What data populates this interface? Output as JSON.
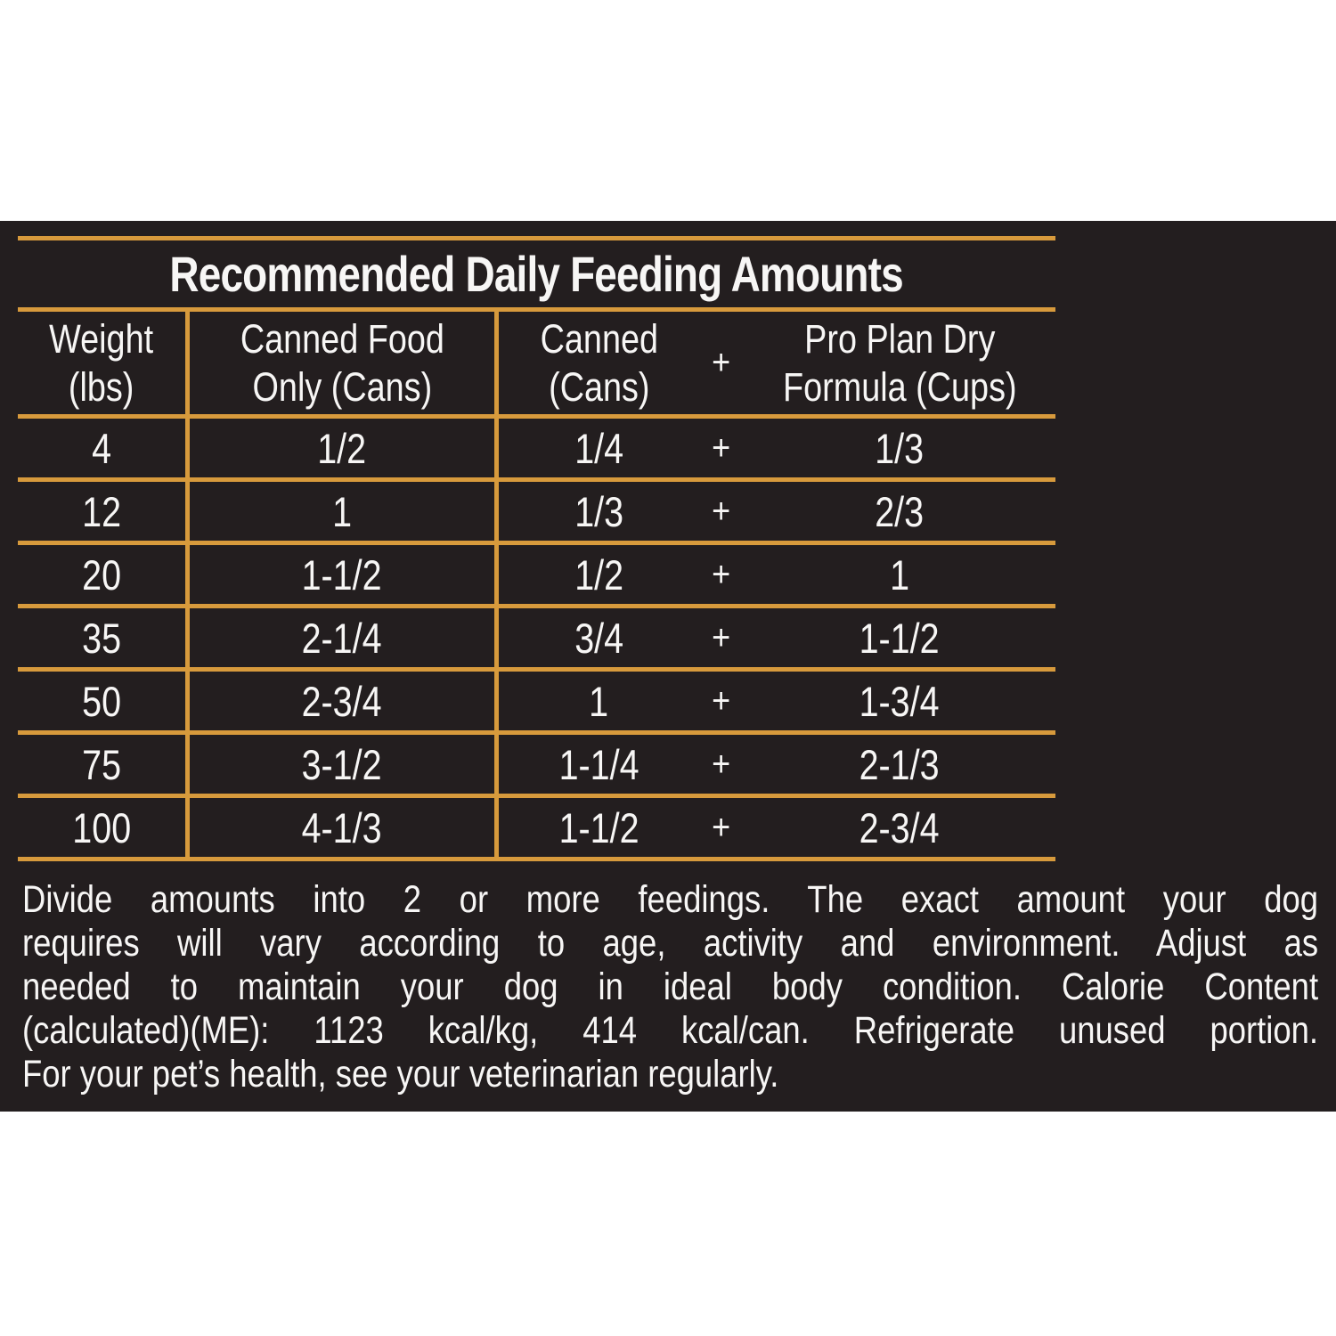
{
  "colors": {
    "page_background": "#ffffff",
    "panel_background": "#231e1f",
    "rule_accent": "#d79a3c",
    "text": "#f7f6f5"
  },
  "title": "Recommended Daily Feeding Amounts",
  "table": {
    "headers": {
      "weight": "Weight\n(lbs)",
      "canned_only": "Canned Food\nOnly (Cans)",
      "canned": "Canned\n(Cans)",
      "plus": "+",
      "dry": "Pro Plan Dry\nFormula (Cups)"
    },
    "rows": [
      {
        "weight": "4",
        "canned_only": "1/2",
        "canned": "1/4",
        "plus": "+",
        "dry": "1/3"
      },
      {
        "weight": "12",
        "canned_only": "1",
        "canned": "1/3",
        "plus": "+",
        "dry": "2/3"
      },
      {
        "weight": "20",
        "canned_only": "1-1/2",
        "canned": "1/2",
        "plus": "+",
        "dry": "1"
      },
      {
        "weight": "35",
        "canned_only": "2-1/4",
        "canned": "3/4",
        "plus": "+",
        "dry": "1-1/2"
      },
      {
        "weight": "50",
        "canned_only": "2-3/4",
        "canned": "1",
        "plus": "+",
        "dry": "1-3/4"
      },
      {
        "weight": "75",
        "canned_only": "3-1/2",
        "canned": "1-1/4",
        "plus": "+",
        "dry": "2-1/3"
      },
      {
        "weight": "100",
        "canned_only": "4-1/3",
        "canned": "1-1/2",
        "plus": "+",
        "dry": "2-3/4"
      }
    ]
  },
  "footnote": {
    "lines": [
      "Divide amounts into 2 or more feedings. The exact amount your dog",
      "requires will vary according to age, activity and environment. Adjust as",
      "needed to maintain your dog in ideal body condition. Calorie Content",
      "(calculated)(ME): 1123 kcal/kg, 414 kcal/can. Refrigerate unused portion.",
      "For your pet’s health, see your veterinarian regularly."
    ]
  }
}
